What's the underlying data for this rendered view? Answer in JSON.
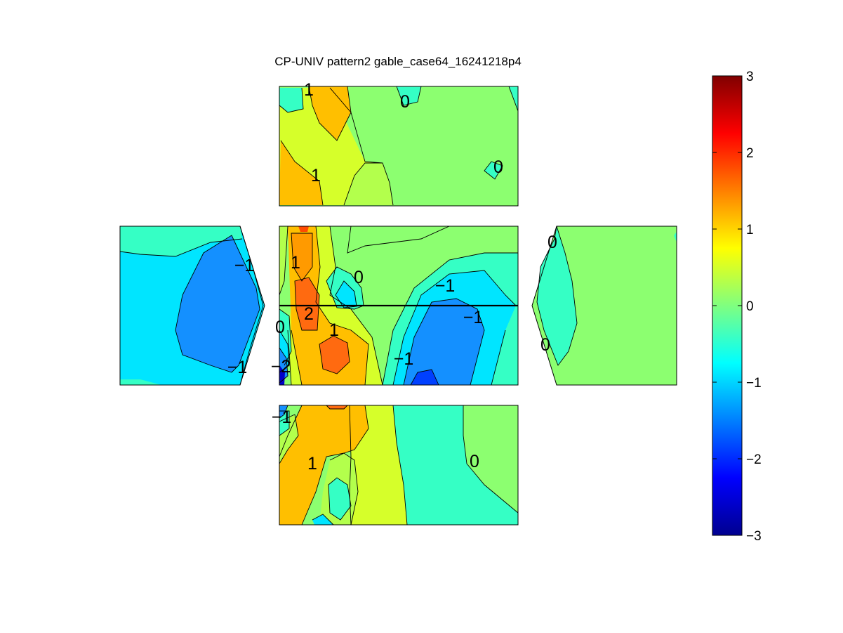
{
  "chart_data": {
    "type": "heatmap",
    "title": "CP-UNIV pattern2 gable_case64_16241218p4",
    "colormap": "jet",
    "colorbar": {
      "min": -3,
      "max": 3,
      "ticks": [
        "3",
        "2",
        "1",
        "0",
        "−1",
        "−2",
        "−3"
      ]
    },
    "panels": [
      {
        "name": "top",
        "labels": [
          "1",
          "0",
          "1",
          "0"
        ]
      },
      {
        "name": "left",
        "labels": [
          "−1",
          "−1"
        ]
      },
      {
        "name": "center",
        "labels": [
          "1",
          "0",
          "−1",
          "2",
          "−1",
          "0",
          "1",
          "−1",
          "−2"
        ]
      },
      {
        "name": "right",
        "labels": [
          "0",
          "0"
        ]
      },
      {
        "name": "bottom",
        "labels": [
          "−1",
          "1",
          "0"
        ]
      }
    ]
  }
}
